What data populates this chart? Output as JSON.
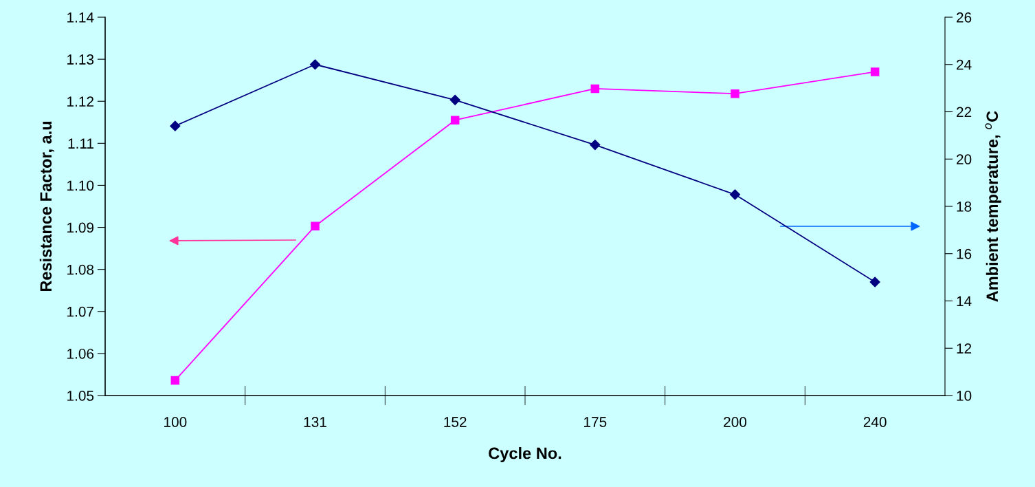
{
  "chart_data": {
    "type": "line",
    "xlabel": "Cycle No.",
    "ylabel": "Resistance Factor, a.u",
    "y2label": "Ambient temperature, $^{o}$C",
    "categories": [
      "100",
      "131",
      "152",
      "175",
      "200",
      "240"
    ],
    "series": [
      {
        "color": "#ff00ff",
        "marker": "square",
        "values": [
          1.0536,
          1.0903,
          1.1155,
          1.123,
          1.1218,
          1.127
        ]
      },
      {
        "color": "#000080",
        "marker": "diamond",
        "axis": "y2",
        "values": [
          21.4,
          24.0,
          22.5,
          20.6,
          18.5,
          14.8
        ]
      }
    ],
    "ylim": [
      1.05,
      1.14
    ],
    "yticks": [
      {
        "value": 1.05,
        "label": "1.05"
      },
      {
        "value": 1.06,
        "label": "1.06"
      },
      {
        "value": 1.07,
        "label": "1.07"
      },
      {
        "value": 1.08,
        "label": "1.08"
      },
      {
        "value": 1.09,
        "label": "1.09"
      },
      {
        "value": 1.1,
        "label": "1.10"
      },
      {
        "value": 1.11,
        "label": "1.11"
      },
      {
        "value": 1.12,
        "label": "1.12"
      },
      {
        "value": 1.13,
        "label": "1.13"
      },
      {
        "value": 1.14,
        "label": "1.14"
      }
    ],
    "y2lim": [
      10,
      26
    ],
    "y2ticks": [
      10,
      12,
      14,
      16,
      18,
      20,
      22,
      24,
      26
    ],
    "grid": false,
    "legend": false
  }
}
